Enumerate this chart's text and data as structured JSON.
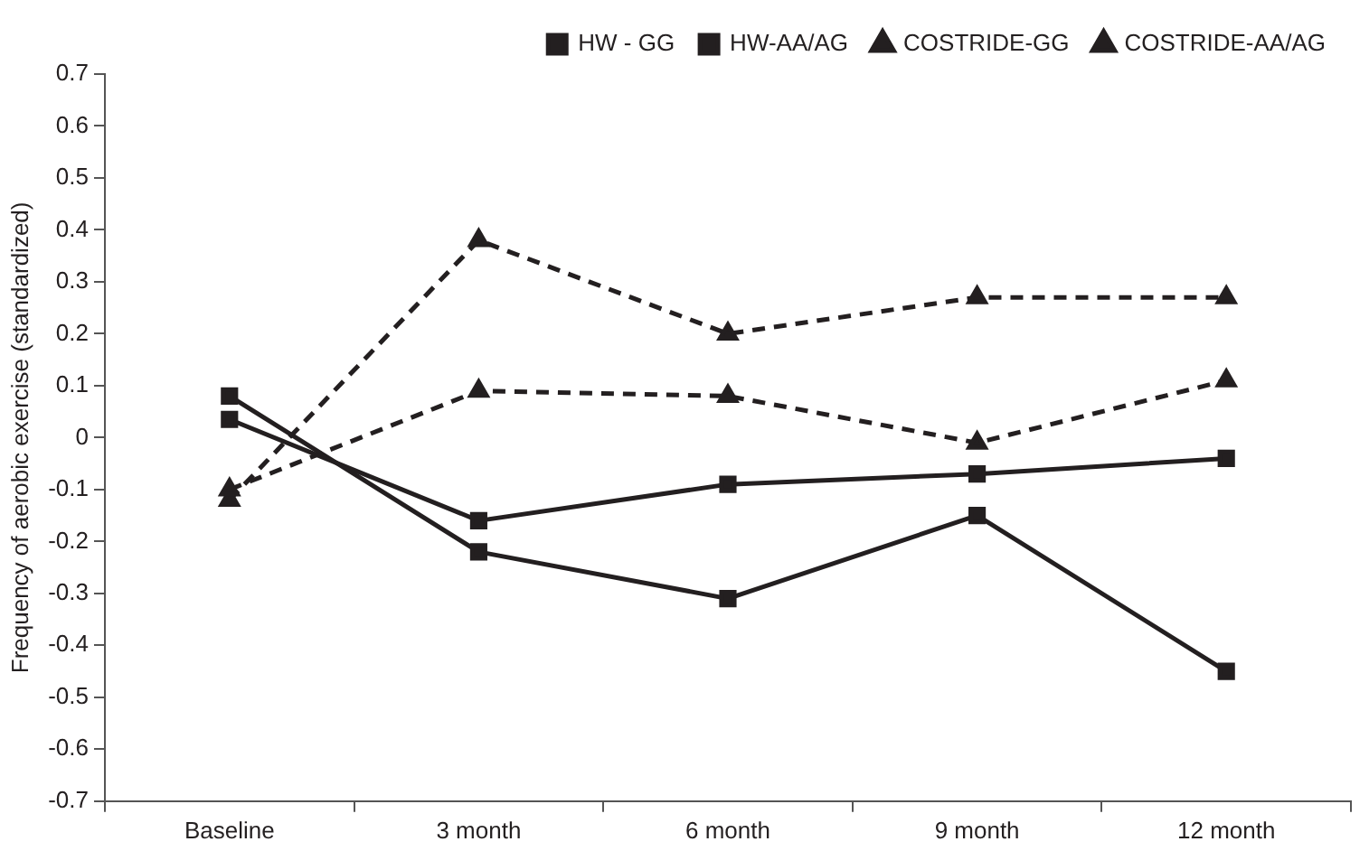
{
  "chart_data": {
    "type": "line",
    "ylabel": "Frequency of aerobic exercise (standardized)",
    "categories": [
      "Baseline",
      "3 month",
      "6 month",
      "9 month",
      "12 month"
    ],
    "ylim": [
      -0.7,
      0.7
    ],
    "yticks": [
      -0.7,
      -0.6,
      -0.5,
      -0.4,
      -0.3,
      -0.2,
      -0.1,
      0,
      0.1,
      0.2,
      0.3,
      0.4,
      0.5,
      0.6,
      0.7
    ],
    "grid": false,
    "legend": "top right",
    "series": [
      {
        "name": "HW - GG",
        "color": "#231f20",
        "marker": "square",
        "line_style": "solid",
        "values": [
          0.035,
          -0.16,
          -0.09,
          -0.07,
          -0.04
        ]
      },
      {
        "name": "HW-AA/AG",
        "color": "#231f20",
        "marker": "square",
        "line_style": "solid",
        "values": [
          0.08,
          -0.22,
          -0.31,
          -0.15,
          -0.45
        ]
      },
      {
        "name": "COSTRIDE-GG",
        "color": "#231f20",
        "marker": "triangle",
        "line_style": "dashed",
        "values": [
          -0.1,
          0.09,
          0.08,
          -0.01,
          0.11
        ]
      },
      {
        "name": "COSTRIDE-AA/AG",
        "color": "#231f20",
        "marker": "triangle",
        "line_style": "dashed",
        "values": [
          -0.12,
          0.38,
          0.2,
          0.27,
          0.27
        ]
      }
    ]
  }
}
